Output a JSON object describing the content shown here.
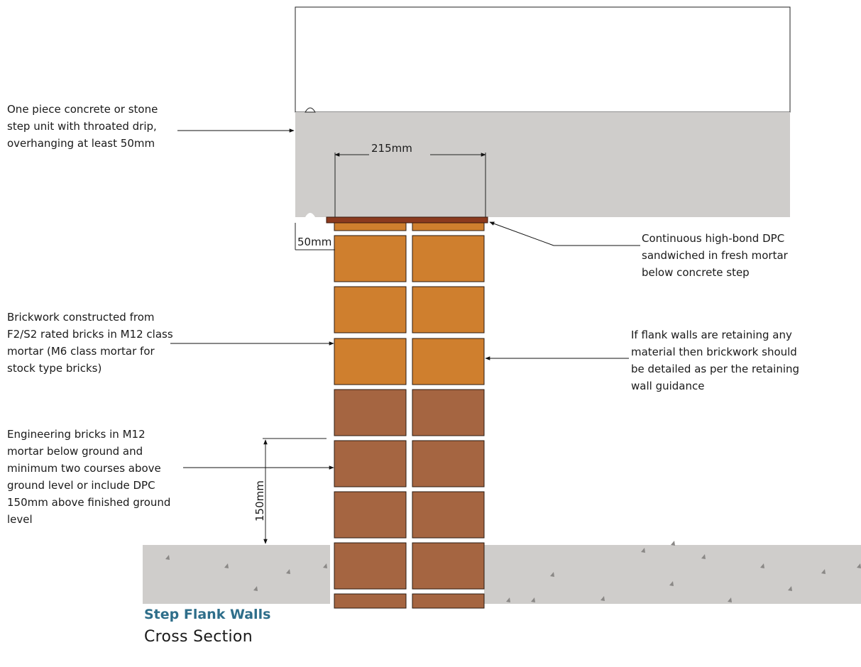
{
  "notes": {
    "step_unit": [
      "One piece concrete or stone",
      "step unit with throated drip,",
      "overhanging at least 50mm"
    ],
    "dpc": [
      "Continuous high-bond DPC",
      "sandwiched in fresh mortar",
      "below concrete step"
    ],
    "brickwork": [
      "Brickwork constructed from",
      "F2/S2 rated bricks in M12 class",
      "mortar (M6 class mortar for",
      "stock type bricks)"
    ],
    "flank": [
      "If flank walls are retaining any",
      "material then brickwork should",
      "be detailed as per the retaining",
      "wall guidance"
    ],
    "engineering": [
      "Engineering bricks in M12",
      "mortar below ground and",
      "minimum two courses above",
      "ground level or include DPC",
      "150mm above finished ground",
      "level"
    ]
  },
  "dimensions": {
    "width_215": "215mm",
    "overhang_50": "50mm",
    "height_150": "150mm"
  },
  "caption": {
    "title": "Step Flank Walls",
    "subtitle": "Cross Section"
  },
  "colors": {
    "concrete": "#cfcdcb",
    "facing_brick": "#cf7f2e",
    "engineering_brick": "#a56541",
    "dpc": "#8b3a1e",
    "caption_title": "#2e6e8a"
  }
}
